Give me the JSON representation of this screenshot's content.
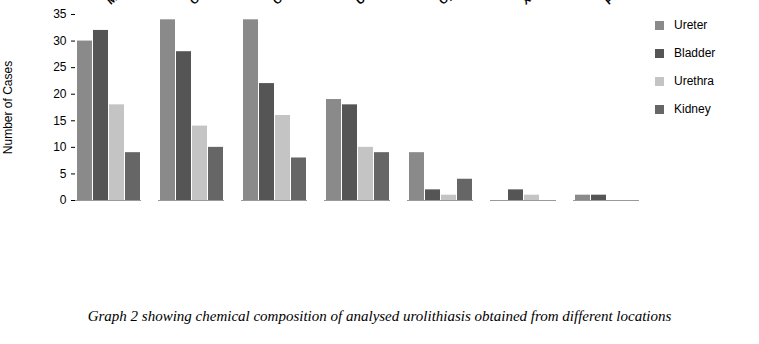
{
  "chart_data": {
    "type": "bar",
    "title": "Graph 2 showing chemical composition of analysed urolithiasis obtained from different locations",
    "y_label": "Number of Cases",
    "categories": [
      "Mg Amm Ph",
      "Calcium Oxalate",
      "Calcium Carbonate",
      "Uric Acid",
      "Cystine",
      "Xanthine",
      "Fibrin"
    ],
    "series": [
      {
        "name": "Ureter",
        "color": "#8a8a8a",
        "values": [
          30,
          34,
          34,
          19,
          9,
          0,
          1
        ]
      },
      {
        "name": "Bladder",
        "color": "#555555",
        "values": [
          32,
          28,
          22,
          18,
          2,
          2,
          1
        ]
      },
      {
        "name": "Urethra",
        "color": "#c4c4c4",
        "values": [
          18,
          14,
          16,
          10,
          1,
          1,
          0
        ]
      },
      {
        "name": "Kidney",
        "color": "#666666",
        "values": [
          9,
          10,
          8,
          9,
          4,
          0,
          0
        ]
      }
    ],
    "ylim": [
      0,
      35
    ],
    "yticks": [
      0,
      5,
      10,
      15,
      20,
      25,
      30,
      35
    ],
    "grid": false,
    "legend": "right"
  }
}
